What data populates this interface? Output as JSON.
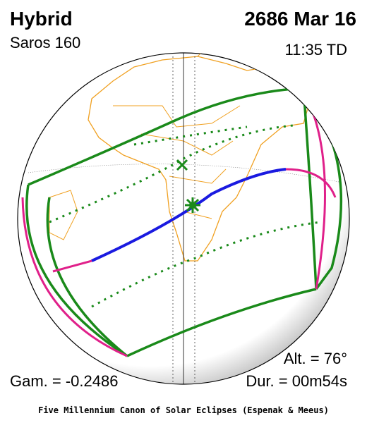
{
  "header": {
    "type": "Hybrid",
    "date": "2686 Mar 16",
    "saros": "Saros 160",
    "time": "11:35 TD"
  },
  "stats": {
    "altitude": "Alt. = 76°",
    "gamma": "Gam. = -0.2486",
    "duration": "Dur. = 00m54s"
  },
  "footer": "Five Millennium Canon of Solar Eclipses (Espenak & Meeus)"
}
